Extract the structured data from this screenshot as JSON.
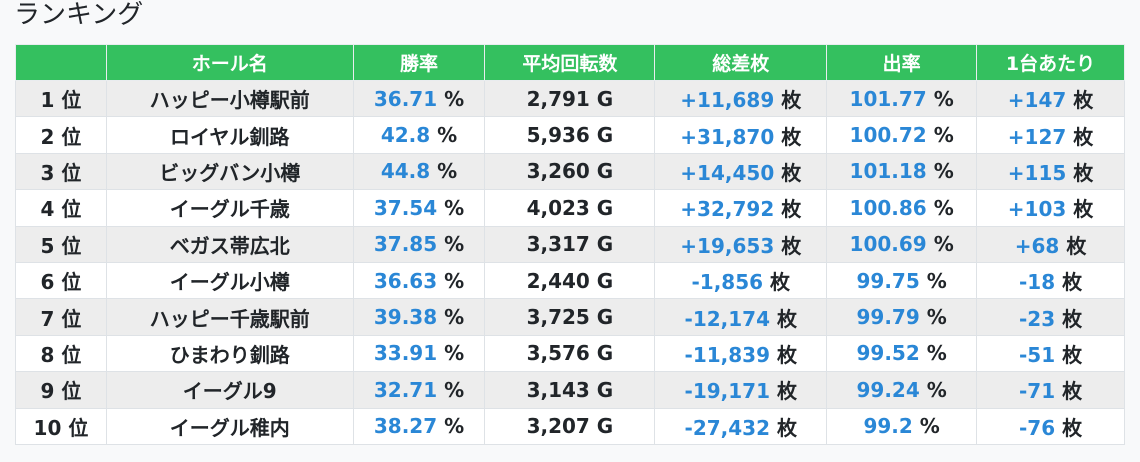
{
  "page": {
    "title": "ランキング"
  },
  "table": {
    "headers": {
      "rank": "",
      "hall": "ホール名",
      "win_rate": "勝率",
      "avg_spins": "平均回転数",
      "total_diff": "総差枚",
      "payout_rate": "出率",
      "per_machine": "1台あたり"
    },
    "units": {
      "percent": "%",
      "games": "G",
      "coins": "枚"
    },
    "rows": [
      {
        "rank": "1 位",
        "hall": "ハッピー小樽駅前",
        "win_rate": "36.71",
        "avg_spins": "2,791 G",
        "total_diff": "+11,689",
        "payout_rate": "101.77",
        "per_machine": "+147"
      },
      {
        "rank": "2 位",
        "hall": "ロイヤル釧路",
        "win_rate": "42.8",
        "avg_spins": "5,936 G",
        "total_diff": "+31,870",
        "payout_rate": "100.72",
        "per_machine": "+127"
      },
      {
        "rank": "3 位",
        "hall": "ビッグバン小樽",
        "win_rate": "44.8",
        "avg_spins": "3,260 G",
        "total_diff": "+14,450",
        "payout_rate": "101.18",
        "per_machine": "+115"
      },
      {
        "rank": "4 位",
        "hall": "イーグル千歳",
        "win_rate": "37.54",
        "avg_spins": "4,023 G",
        "total_diff": "+32,792",
        "payout_rate": "100.86",
        "per_machine": "+103"
      },
      {
        "rank": "5 位",
        "hall": "ベガス帯広北",
        "win_rate": "37.85",
        "avg_spins": "3,317 G",
        "total_diff": "+19,653",
        "payout_rate": "100.69",
        "per_machine": "+68"
      },
      {
        "rank": "6 位",
        "hall": "イーグル小樽",
        "win_rate": "36.63",
        "avg_spins": "2,440 G",
        "total_diff": "-1,856",
        "payout_rate": "99.75",
        "per_machine": "-18"
      },
      {
        "rank": "7 位",
        "hall": "ハッピー千歳駅前",
        "win_rate": "39.38",
        "avg_spins": "3,725 G",
        "total_diff": "-12,174",
        "payout_rate": "99.79",
        "per_machine": "-23"
      },
      {
        "rank": "8 位",
        "hall": "ひまわり釧路",
        "win_rate": "33.91",
        "avg_spins": "3,576 G",
        "total_diff": "-11,839",
        "payout_rate": "99.52",
        "per_machine": "-51"
      },
      {
        "rank": "9 位",
        "hall": "イーグル9",
        "win_rate": "32.71",
        "avg_spins": "3,143 G",
        "total_diff": "-19,171",
        "payout_rate": "99.24",
        "per_machine": "-71"
      },
      {
        "rank": "10 位",
        "hall": "イーグル稚内",
        "win_rate": "38.27",
        "avg_spins": "3,207 G",
        "total_diff": "-27,432",
        "payout_rate": "99.2",
        "per_machine": "-76"
      }
    ]
  },
  "colors": {
    "header_bg": "#34c05f",
    "value_blue": "#2a87d6",
    "row_stripe": "#ededed"
  }
}
